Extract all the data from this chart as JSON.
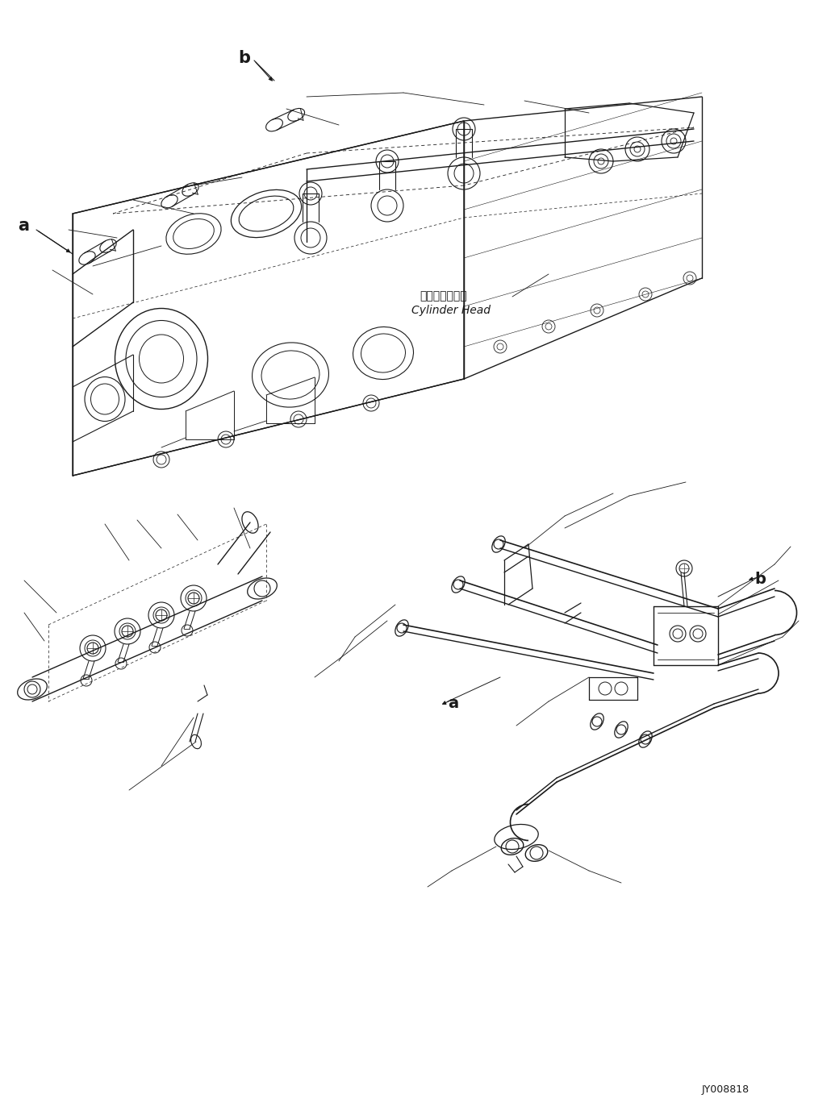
{
  "background_color": "#ffffff",
  "line_color": "#1a1a1a",
  "label_a_top": "a",
  "label_b_top": "b",
  "label_a_bottom": "a",
  "label_b_bottom": "b",
  "label_cylinder_jp": "シリンダヘッド",
  "label_cylinder_en": "Cylinder Head",
  "label_code": "JY008818",
  "figsize": [
    10.3,
    13.83
  ],
  "dpi": 100
}
